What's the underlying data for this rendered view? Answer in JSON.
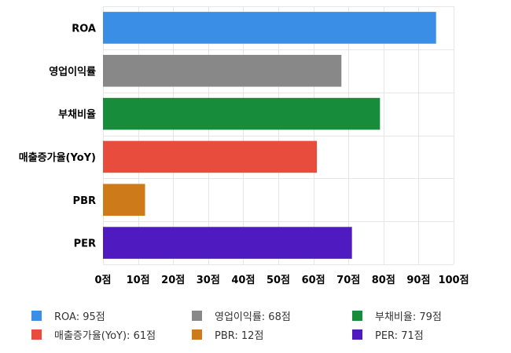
{
  "chart_data": {
    "type": "bar",
    "orientation": "horizontal",
    "categories": [
      "ROA",
      "영업이익률",
      "부채비율",
      "매출증가율(YoY)",
      "PBR",
      "PER"
    ],
    "values": [
      95,
      68,
      79,
      61,
      12,
      71
    ],
    "colors": [
      "#3a8ee6",
      "#888888",
      "#178c3a",
      "#e84c3d",
      "#cc7a1a",
      "#4f1abf"
    ],
    "xlim": [
      0,
      100
    ],
    "x_ticks": [
      0,
      10,
      20,
      30,
      40,
      50,
      60,
      70,
      80,
      90,
      100
    ],
    "x_tick_labels": [
      "0점",
      "10점",
      "20점",
      "30점",
      "40점",
      "50점",
      "60점",
      "70점",
      "80점",
      "90점",
      "100점"
    ],
    "grid": true,
    "legend_position": "bottom",
    "legend": [
      {
        "label": "ROA: 95점",
        "color": "#3a8ee6"
      },
      {
        "label": "영업이익률: 68점",
        "color": "#888888"
      },
      {
        "label": "부채비율: 79점",
        "color": "#178c3a"
      },
      {
        "label": "매출증가율(YoY): 61점",
        "color": "#e84c3d"
      },
      {
        "label": "PBR: 12점",
        "color": "#cc7a1a"
      },
      {
        "label": "PER: 71점",
        "color": "#4f1abf"
      }
    ]
  }
}
